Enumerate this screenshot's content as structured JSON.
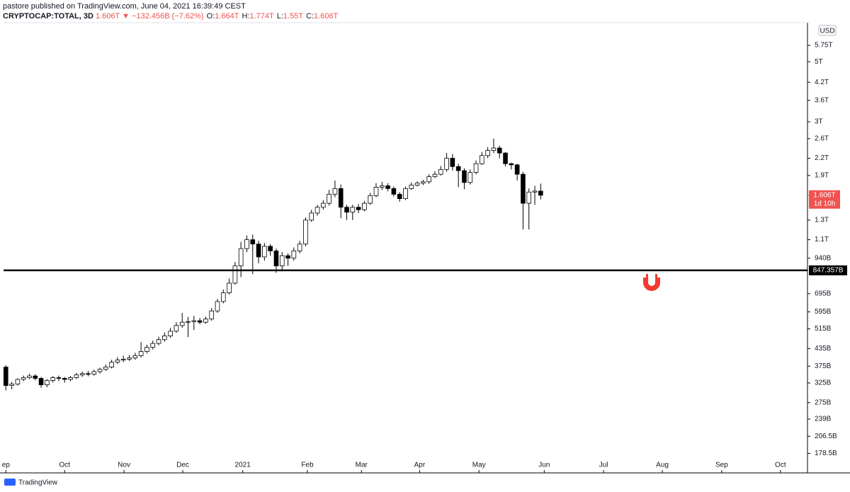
{
  "header": {
    "byline": "pastore published on TradingView.com, June 04, 2021 16:39:49 CEST",
    "symbol": "CRYPTOCAP:TOTAL, 3D",
    "change": "1.606T ▼ −132.456B (−7.62%)",
    "ohlc": [
      {
        "key": "O:",
        "value": "1.664T"
      },
      {
        "key": "H:",
        "value": "1.774T"
      },
      {
        "key": "L:",
        "value": "1.55T"
      },
      {
        "key": "C:",
        "value": "1.606T"
      }
    ]
  },
  "footer": "TradingView",
  "chart_data": {
    "type": "candlestick",
    "log_scale": true,
    "currency": "USD",
    "up_color": "#ffffff",
    "down_color": "#000000",
    "edge_color": "#000000",
    "xlim": [
      -1,
      136.4
    ],
    "xticks": [
      {
        "value": 0,
        "label": "ep"
      },
      {
        "value": 10,
        "label": "Oct"
      },
      {
        "value": 20.1,
        "label": "Nov"
      },
      {
        "value": 30.1,
        "label": "Dec"
      },
      {
        "value": 40.3,
        "label": "2021"
      },
      {
        "value": 51.3,
        "label": "Feb"
      },
      {
        "value": 60.5,
        "label": "Mar"
      },
      {
        "value": 70.4,
        "label": "Apr"
      },
      {
        "value": 80.5,
        "label": "May"
      },
      {
        "value": 91.6,
        "label": "Jun"
      },
      {
        "value": 101.7,
        "label": "Jul"
      },
      {
        "value": 111.7,
        "label": "Aug"
      },
      {
        "value": 121.8,
        "label": "Sep"
      },
      {
        "value": 131.8,
        "label": "Oct"
      }
    ],
    "ylim": [
      171.6,
      6975
    ],
    "yticks": [
      {
        "value": 178.5,
        "label": "178.5B"
      },
      {
        "value": 206.5,
        "label": "206.5B"
      },
      {
        "value": 239,
        "label": "239B"
      },
      {
        "value": 275,
        "label": "275B"
      },
      {
        "value": 325,
        "label": "325B"
      },
      {
        "value": 375,
        "label": "375B"
      },
      {
        "value": 435,
        "label": "435B"
      },
      {
        "value": 515,
        "label": "515B"
      },
      {
        "value": 595,
        "label": "595B"
      },
      {
        "value": 695,
        "label": "695B"
      },
      {
        "value": 940,
        "label": "940B"
      },
      {
        "value": 1100,
        "label": "1.1T"
      },
      {
        "value": 1300,
        "label": "1.3T"
      },
      {
        "value": 1900,
        "label": "1.9T"
      },
      {
        "value": 2200,
        "label": "2.2T"
      },
      {
        "value": 2600,
        "label": "2.6T"
      },
      {
        "value": 3000,
        "label": "3T"
      },
      {
        "value": 3600,
        "label": "3.6T"
      },
      {
        "value": 4200,
        "label": "4.2T"
      },
      {
        "value": 5000,
        "label": "5T"
      },
      {
        "value": 5750,
        "label": "5.75T"
      }
    ],
    "hline": {
      "value": 847.357,
      "label": "847.357B"
    },
    "last_label": {
      "value": 1606,
      "label": "1.606T",
      "countdown": "1d 10h"
    },
    "open": [
      372,
      318,
      322,
      335,
      340,
      345,
      338,
      320,
      332,
      340,
      338,
      335,
      340,
      348,
      352,
      350,
      358,
      365,
      372,
      388,
      395,
      398,
      402,
      410,
      425,
      440,
      455,
      470,
      485,
      505,
      530,
      545,
      548,
      552,
      545,
      560,
      600,
      650,
      700,
      760,
      880,
      1020,
      1100,
      1060,
      950,
      1040,
      1000,
      880,
      960,
      940,
      1000,
      1060,
      1300,
      1380,
      1450,
      1500,
      1620,
      1700,
      1450,
      1390,
      1450,
      1420,
      1500,
      1600,
      1720,
      1740,
      1700,
      1620,
      1560,
      1700,
      1750,
      1780,
      1800,
      1880,
      1920,
      2000,
      2200,
      2050,
      1980,
      1790,
      1950,
      2100,
      2250,
      2350,
      2400,
      2300,
      2100,
      2080,
      1920,
      1500,
      1650,
      1664
    ],
    "high": [
      378,
      328,
      338,
      346,
      352,
      350,
      342,
      336,
      345,
      346,
      342,
      345,
      354,
      358,
      360,
      364,
      370,
      380,
      396,
      405,
      410,
      412,
      420,
      460,
      450,
      466,
      482,
      500,
      520,
      545,
      590,
      570,
      575,
      565,
      572,
      615,
      665,
      720,
      790,
      910,
      1080,
      1140,
      1150,
      1090,
      1070,
      1060,
      1020,
      990,
      980,
      1030,
      1090,
      1330,
      1420,
      1480,
      1540,
      1680,
      1820,
      1760,
      1480,
      1480,
      1490,
      1530,
      1640,
      1780,
      1800,
      1780,
      1730,
      1650,
      1730,
      1790,
      1810,
      1830,
      1920,
      1970,
      2060,
      2300,
      2280,
      2100,
      2020,
      2000,
      2160,
      2320,
      2420,
      2600,
      2450,
      2320,
      2120,
      2100,
      1960,
      1700,
      1740,
      1774
    ],
    "low": [
      305,
      308,
      318,
      330,
      336,
      332,
      312,
      314,
      326,
      330,
      326,
      330,
      336,
      342,
      344,
      346,
      352,
      360,
      368,
      382,
      388,
      392,
      396,
      404,
      418,
      432,
      448,
      462,
      478,
      498,
      520,
      480,
      510,
      535,
      538,
      552,
      590,
      640,
      690,
      750,
      800,
      990,
      820,
      900,
      920,
      960,
      830,
      840,
      880,
      920,
      980,
      1040,
      1280,
      1350,
      1420,
      1470,
      1580,
      1320,
      1300,
      1300,
      1380,
      1400,
      1480,
      1580,
      1680,
      1660,
      1590,
      1520,
      1540,
      1680,
      1730,
      1750,
      1770,
      1860,
      1900,
      1960,
      1980,
      1720,
      1690,
      1760,
      1920,
      2080,
      2200,
      2300,
      2200,
      2050,
      2000,
      1820,
      1200,
      1200,
      1480,
      1550
    ],
    "close": [
      318,
      322,
      335,
      340,
      345,
      338,
      320,
      332,
      340,
      338,
      335,
      340,
      348,
      352,
      350,
      358,
      365,
      372,
      388,
      395,
      398,
      402,
      410,
      425,
      440,
      455,
      470,
      485,
      505,
      530,
      545,
      548,
      552,
      545,
      560,
      600,
      650,
      700,
      760,
      880,
      1020,
      1100,
      1060,
      950,
      1040,
      1000,
      880,
      960,
      940,
      1000,
      1060,
      1300,
      1380,
      1450,
      1500,
      1620,
      1700,
      1450,
      1390,
      1450,
      1420,
      1500,
      1600,
      1720,
      1740,
      1700,
      1620,
      1560,
      1700,
      1750,
      1780,
      1800,
      1880,
      1920,
      2000,
      2200,
      2050,
      1980,
      1790,
      1950,
      2100,
      2250,
      2350,
      2400,
      2300,
      2100,
      2080,
      1920,
      1500,
      1650,
      1664,
      1606
    ]
  }
}
